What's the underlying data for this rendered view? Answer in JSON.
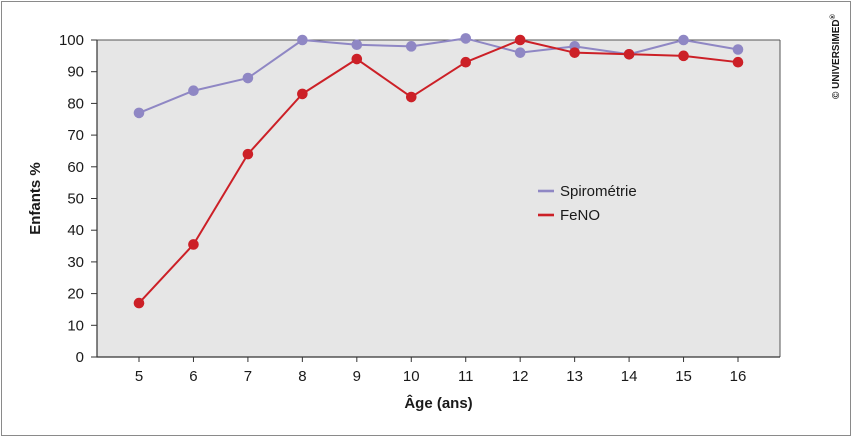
{
  "copyright": "© UNIVERSIMED",
  "copyright_mark": "®",
  "chart_data": {
    "type": "line",
    "xlabel": "Âge (ans)",
    "ylabel": "Enfants %",
    "x": [
      5,
      6,
      7,
      8,
      9,
      10,
      11,
      12,
      13,
      14,
      15,
      16
    ],
    "ylim": [
      0,
      100
    ],
    "yticks": [
      0,
      10,
      20,
      30,
      40,
      50,
      60,
      70,
      80,
      90,
      100
    ],
    "grid": false,
    "legend_position": "center-right",
    "series": [
      {
        "name": "Spirométrie",
        "color": "#8f87c4",
        "values": [
          77,
          84,
          88,
          100,
          98.5,
          98,
          100.5,
          96,
          98,
          95.5,
          100,
          97
        ]
      },
      {
        "name": "FeNO",
        "color": "#cc2027",
        "values": [
          17,
          35.5,
          64,
          83,
          94,
          82,
          93,
          100,
          96,
          95.5,
          95,
          93
        ]
      }
    ]
  }
}
